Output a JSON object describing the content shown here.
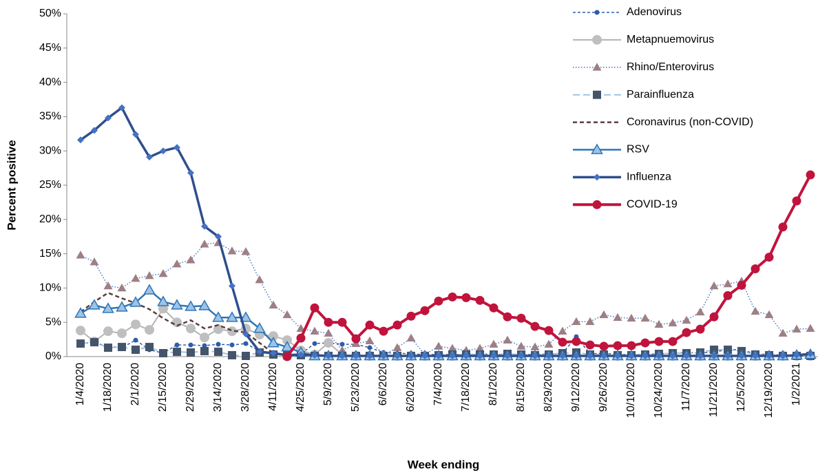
{
  "chart_data": {
    "type": "line",
    "x_label": "Week ending",
    "y_label": "Percent positive",
    "categories": [
      "1/4/2020",
      null,
      "1/18/2020",
      null,
      "2/1/2020",
      null,
      "2/15/2020",
      null,
      "2/29/2020",
      null,
      "3/14/2020",
      null,
      "3/28/2020",
      null,
      "4/11/2020",
      null,
      "4/25/2020",
      null,
      "5/9/2020",
      null,
      "5/23/2020",
      null,
      "6/6/2020",
      null,
      "6/20/2020",
      null,
      "7/4/2020",
      null,
      "7/18/2020",
      null,
      "8/1/2020",
      null,
      "8/15/2020",
      null,
      "8/29/2020",
      null,
      "9/12/2020",
      null,
      "9/26/2020",
      null,
      "10/10/2020",
      null,
      "10/24/2020",
      null,
      "11/7/2020",
      null,
      "11/21/2020",
      null,
      "12/5/2020",
      null,
      "12/19/2020",
      null,
      "1/2/2021",
      null
    ],
    "ylim": [
      0,
      50
    ],
    "yticks": [
      {
        "value": 0,
        "label": "0%"
      },
      {
        "value": 5,
        "label": "5%"
      },
      {
        "value": 10,
        "label": "10%"
      },
      {
        "value": 15,
        "label": "15%"
      },
      {
        "value": 20,
        "label": "20%"
      },
      {
        "value": 25,
        "label": "25%"
      },
      {
        "value": 30,
        "label": "30%"
      },
      {
        "value": 35,
        "label": "35%"
      },
      {
        "value": 40,
        "label": "40%"
      },
      {
        "value": 45,
        "label": "45%"
      },
      {
        "value": 50,
        "label": "50%"
      }
    ],
    "grid": false,
    "legend": "top-right",
    "series": [
      {
        "name": "Adenovirus",
        "color": "#2e5da8",
        "dash": "4,3",
        "width": 1.5,
        "marker": "circle",
        "marker_size": 3,
        "marker_color": "#2e5da8",
        "values": [
          2.0,
          2.0,
          1.5,
          1.3,
          2.4,
          1.0,
          0.5,
          1.7,
          1.7,
          1.6,
          1.8,
          1.7,
          1.9,
          0.8,
          0.6,
          0.3,
          0.4,
          1.9,
          2.0,
          1.8,
          1.8,
          1.3,
          0.6,
          0.5,
          0.4,
          0.3,
          0.3,
          0.3,
          0.3,
          0.4,
          0.3,
          0.4,
          0.3,
          0.3,
          0.4,
          0.5,
          2.9,
          0.4,
          0.5,
          0.3,
          0.3,
          0.3,
          0.4,
          0.5,
          0.6,
          0.5,
          0.7,
          1.0,
          1.0,
          0.4,
          0.3,
          0.2,
          0.2,
          0.3
        ]
      },
      {
        "name": "Metapnuemovirus",
        "color": "#b3b3b3",
        "dash": "none",
        "width": 2,
        "marker": "circle",
        "marker_size": 6.5,
        "marker_color": "#bfbfbf",
        "values": [
          3.8,
          2.2,
          3.7,
          3.4,
          4.7,
          3.9,
          7.0,
          5.0,
          4.1,
          2.8,
          4.0,
          3.7,
          4.1,
          3.2,
          3.0,
          2.4,
          0.9,
          0.3,
          2.0,
          0.3,
          0.1,
          0.1,
          0.1,
          0.1,
          0.1,
          0.1,
          0.1,
          0.1,
          0.1,
          0.1,
          0.1,
          0.1,
          0.1,
          0.1,
          0.1,
          0.1,
          0.1,
          0.1,
          0.1,
          0.1,
          0.1,
          0.1,
          0.1,
          0.1,
          0.1,
          0.1,
          0.1,
          0.1,
          0.1,
          0.1,
          0.1,
          0.1,
          0.1,
          0.1
        ]
      },
      {
        "name": "Rhino/Enterovirus",
        "color": "#4a72c4",
        "dash": "1.5,2.5",
        "width": 1.5,
        "marker": "triangle",
        "marker_size": 6.5,
        "marker_color": "#9e7f86",
        "values": [
          14.8,
          13.8,
          10.3,
          10.0,
          11.4,
          11.8,
          12.1,
          13.5,
          14.1,
          16.4,
          16.6,
          15.4,
          15.3,
          11.2,
          7.5,
          6.1,
          4.1,
          3.7,
          3.4,
          0.9,
          1.9,
          2.3,
          0.3,
          1.3,
          2.7,
          0.3,
          1.5,
          1.2,
          0.9,
          1.2,
          1.8,
          2.4,
          1.5,
          1.4,
          1.8,
          3.7,
          5.1,
          5.1,
          6.1,
          5.7,
          5.6,
          5.6,
          4.7,
          4.9,
          5.3,
          6.5,
          10.3,
          10.6,
          11.0,
          6.6,
          6.1,
          3.4,
          4.0,
          4.1
        ]
      },
      {
        "name": "Parainfluenza",
        "color": "#9dc3e6",
        "dash": "10,5",
        "width": 2,
        "marker": "square",
        "marker_size": 6,
        "marker_color": "#44546a",
        "values": [
          1.9,
          2.1,
          1.3,
          1.4,
          1.0,
          1.4,
          0.5,
          0.7,
          0.6,
          0.8,
          0.7,
          0.2,
          0.1,
          0.6,
          0.3,
          0.2,
          0.2,
          0.1,
          0.1,
          0.1,
          0.1,
          0.1,
          0.1,
          0.1,
          0.1,
          0.1,
          0.2,
          0.3,
          0.3,
          0.3,
          0.3,
          0.4,
          0.3,
          0.2,
          0.3,
          0.5,
          0.6,
          0.3,
          0.3,
          0.2,
          0.2,
          0.3,
          0.4,
          0.5,
          0.5,
          0.6,
          1.0,
          1.0,
          0.8,
          0.3,
          0.2,
          0.1,
          0.1,
          0.1
        ]
      },
      {
        "name": "Coronavirus (non-COVID)",
        "color": "#5a3d3d",
        "dash": "6,4",
        "width": 2.5,
        "marker": "none",
        "marker_size": 0,
        "marker_color": "#5a3d3d",
        "values": [
          6.5,
          8.0,
          9.3,
          8.5,
          7.8,
          6.9,
          5.6,
          4.5,
          5.3,
          4.1,
          4.6,
          3.8,
          3.5,
          2.0,
          0.5,
          0.2,
          0.1,
          0.1,
          0.1,
          0.1,
          0.1,
          0.1,
          0.1,
          0.1,
          0.1,
          0.1,
          0.1,
          0.1,
          0.1,
          0.1,
          0.1,
          0.1,
          0.1,
          0.1,
          0.1,
          0.1,
          0.1,
          0.1,
          0.1,
          0.1,
          0.1,
          0.1,
          0.1,
          0.1,
          0.1,
          0.1,
          0.1,
          0.1,
          0.1,
          0.1,
          0.1,
          0.1,
          0.1,
          0.1
        ]
      },
      {
        "name": "RSV",
        "color": "#2e75b6",
        "dash": "none",
        "width": 2.5,
        "marker": "triangle",
        "marker_size": 7.5,
        "marker_color": "#9dc3e6",
        "values": [
          6.3,
          7.5,
          7.0,
          7.2,
          7.9,
          9.7,
          8.0,
          7.5,
          7.3,
          7.4,
          5.7,
          5.7,
          5.7,
          4.1,
          2.0,
          1.4,
          0.6,
          0.1,
          0.1,
          0.1,
          0.1,
          0.1,
          0.1,
          0.1,
          0.1,
          0.1,
          0.1,
          0.1,
          0.1,
          0.1,
          0.1,
          0.1,
          0.1,
          0.1,
          0.1,
          0.1,
          0.1,
          0.1,
          0.1,
          0.1,
          0.1,
          0.1,
          0.1,
          0.1,
          0.1,
          0.1,
          0.1,
          0.1,
          0.1,
          0.1,
          0.1,
          0.1,
          0.2,
          0.3
        ]
      },
      {
        "name": "Influenza",
        "color": "#2f4e8c",
        "dash": "none",
        "width": 3.5,
        "marker": "diamond",
        "marker_size": 5,
        "marker_color": "#4472c4",
        "values": [
          31.6,
          33.0,
          34.8,
          36.3,
          32.4,
          29.1,
          30.0,
          30.5,
          26.8,
          19.0,
          17.5,
          10.3,
          3.3,
          0.7,
          0.5,
          0.2,
          0.3,
          0.2,
          0.1,
          0.1,
          0.1,
          0.1,
          0.1,
          0.1,
          0.1,
          0.1,
          0.1,
          0.1,
          0.1,
          0.1,
          0.1,
          0.1,
          0.1,
          0.1,
          0.1,
          0.1,
          0.1,
          0.1,
          0.1,
          0.1,
          0.1,
          0.1,
          0.1,
          0.1,
          0.1,
          0.1,
          0.1,
          0.1,
          0.1,
          0.1,
          0.1,
          0.1,
          0.2,
          0.4
        ]
      },
      {
        "name": "COVID-19",
        "color": "#c0143c",
        "dash": "none",
        "width": 4,
        "marker": "circle",
        "marker_size": 6,
        "marker_color": "#c0143c",
        "values": [
          null,
          null,
          null,
          null,
          null,
          null,
          null,
          null,
          null,
          null,
          null,
          null,
          null,
          null,
          null,
          0,
          2.7,
          7.1,
          5.0,
          5.0,
          2.6,
          4.6,
          3.7,
          4.6,
          5.9,
          6.7,
          8.1,
          8.7,
          8.6,
          8.2,
          7.1,
          5.8,
          5.6,
          4.4,
          3.8,
          2.1,
          2.2,
          1.7,
          1.5,
          1.6,
          1.6,
          2.0,
          2.2,
          2.2,
          3.5,
          4.0,
          5.8,
          8.9,
          10.4,
          12.8,
          14.5,
          18.9,
          22.7,
          26.5
        ]
      }
    ]
  }
}
